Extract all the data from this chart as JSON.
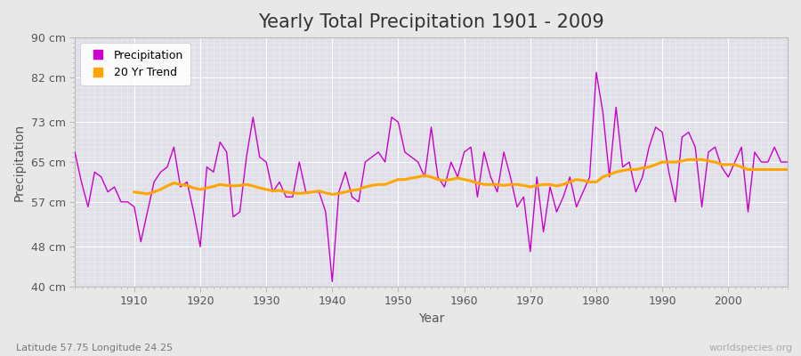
{
  "title": "Yearly Total Precipitation 1901 - 2009",
  "xlabel": "Year",
  "ylabel": "Precipitation",
  "subtitle": "Latitude 57.75 Longitude 24.25",
  "watermark": "worldspecies.org",
  "years": [
    1901,
    1902,
    1903,
    1904,
    1905,
    1906,
    1907,
    1908,
    1909,
    1910,
    1911,
    1912,
    1913,
    1914,
    1915,
    1916,
    1917,
    1918,
    1919,
    1920,
    1921,
    1922,
    1923,
    1924,
    1925,
    1926,
    1927,
    1928,
    1929,
    1930,
    1931,
    1932,
    1933,
    1934,
    1935,
    1936,
    1937,
    1938,
    1939,
    1940,
    1941,
    1942,
    1943,
    1944,
    1945,
    1946,
    1947,
    1948,
    1949,
    1950,
    1951,
    1952,
    1953,
    1954,
    1955,
    1956,
    1957,
    1958,
    1959,
    1960,
    1961,
    1962,
    1963,
    1964,
    1965,
    1966,
    1967,
    1968,
    1969,
    1970,
    1971,
    1972,
    1973,
    1974,
    1975,
    1976,
    1977,
    1978,
    1979,
    1980,
    1981,
    1982,
    1983,
    1984,
    1985,
    1986,
    1987,
    1988,
    1989,
    1990,
    1991,
    1992,
    1993,
    1994,
    1995,
    1996,
    1997,
    1998,
    1999,
    2000,
    2001,
    2002,
    2003,
    2004,
    2005,
    2006,
    2007,
    2008,
    2009
  ],
  "precip": [
    67,
    61,
    56,
    63,
    62,
    59,
    60,
    57,
    57,
    56,
    49,
    55,
    61,
    63,
    64,
    68,
    60,
    61,
    55,
    48,
    64,
    63,
    69,
    67,
    54,
    55,
    66,
    74,
    66,
    65,
    59,
    61,
    58,
    58,
    65,
    59,
    59,
    59,
    55,
    41,
    59,
    63,
    58,
    57,
    65,
    66,
    67,
    65,
    74,
    73,
    67,
    66,
    65,
    62,
    72,
    62,
    60,
    65,
    62,
    67,
    68,
    58,
    67,
    62,
    59,
    67,
    62,
    56,
    58,
    47,
    62,
    51,
    60,
    55,
    58,
    62,
    56,
    59,
    62,
    83,
    75,
    62,
    76,
    64,
    65,
    59,
    62,
    68,
    72,
    71,
    63,
    57,
    70,
    71,
    68,
    56,
    67,
    68,
    64,
    62,
    65,
    68,
    55,
    67,
    65,
    65,
    68,
    65,
    65
  ],
  "trend_years": [
    1910,
    1911,
    1912,
    1913,
    1914,
    1915,
    1916,
    1917,
    1918,
    1919,
    1920,
    1921,
    1922,
    1923,
    1924,
    1925,
    1926,
    1927,
    1928,
    1929,
    1930,
    1931,
    1932,
    1933,
    1934,
    1935,
    1936,
    1937,
    1938,
    1939,
    1940,
    1941,
    1942,
    1943,
    1944,
    1945,
    1946,
    1947,
    1948,
    1949,
    1950,
    1951,
    1952,
    1953,
    1954,
    1955,
    1956,
    1957,
    1958,
    1959,
    1960,
    1961,
    1962,
    1963,
    1964,
    1965,
    1966,
    1967,
    1968,
    1969,
    1970,
    1971,
    1972,
    1973,
    1974,
    1975,
    1976,
    1977,
    1978,
    1979,
    1980,
    1981,
    1982,
    1983,
    1984,
    1985,
    1986,
    1987,
    1988,
    1989,
    1990,
    1991,
    1992,
    1993,
    1994,
    1995,
    1996,
    1997,
    1998,
    1999,
    2000,
    2001,
    2002,
    2003,
    2004,
    2005,
    2006,
    2007,
    2008,
    2009
  ],
  "trend": [
    59.0,
    58.8,
    58.6,
    59.0,
    59.5,
    60.2,
    60.8,
    60.5,
    60.3,
    59.8,
    59.5,
    59.8,
    60.1,
    60.5,
    60.3,
    60.2,
    60.3,
    60.5,
    60.2,
    59.8,
    59.5,
    59.2,
    59.3,
    59.0,
    58.8,
    58.7,
    58.8,
    59.0,
    59.2,
    58.8,
    58.5,
    58.7,
    59.0,
    59.3,
    59.5,
    60.0,
    60.3,
    60.5,
    60.5,
    61.0,
    61.5,
    61.5,
    61.8,
    62.0,
    62.3,
    62.0,
    61.5,
    61.3,
    61.5,
    61.8,
    61.5,
    61.2,
    60.8,
    60.5,
    60.5,
    60.5,
    60.3,
    60.5,
    60.5,
    60.3,
    60.0,
    60.3,
    60.5,
    60.5,
    60.2,
    60.5,
    61.0,
    61.5,
    61.3,
    61.0,
    61.0,
    62.0,
    62.5,
    63.0,
    63.3,
    63.5,
    63.5,
    63.8,
    64.0,
    64.5,
    65.0,
    65.0,
    65.0,
    65.2,
    65.5,
    65.5,
    65.5,
    65.2,
    65.0,
    64.5,
    64.5,
    64.5,
    64.0,
    63.5,
    63.5,
    63.5,
    63.5,
    63.5,
    63.5,
    63.5
  ],
  "precip_color": "#cc00cc",
  "trend_color": "#FFA500",
  "bg_color": "#e8e8e8",
  "plot_bg_color": "#e0e0e8",
  "grid_color": "#ffffff",
  "ylim": [
    40,
    90
  ],
  "yticks": [
    40,
    48,
    57,
    65,
    73,
    82,
    90
  ],
  "ytick_labels": [
    "40 cm",
    "48 cm",
    "57 cm",
    "65 cm",
    "73 cm",
    "82 cm",
    "90 cm"
  ],
  "title_fontsize": 15,
  "axis_fontsize": 10,
  "tick_fontsize": 9,
  "legend_fontsize": 9
}
